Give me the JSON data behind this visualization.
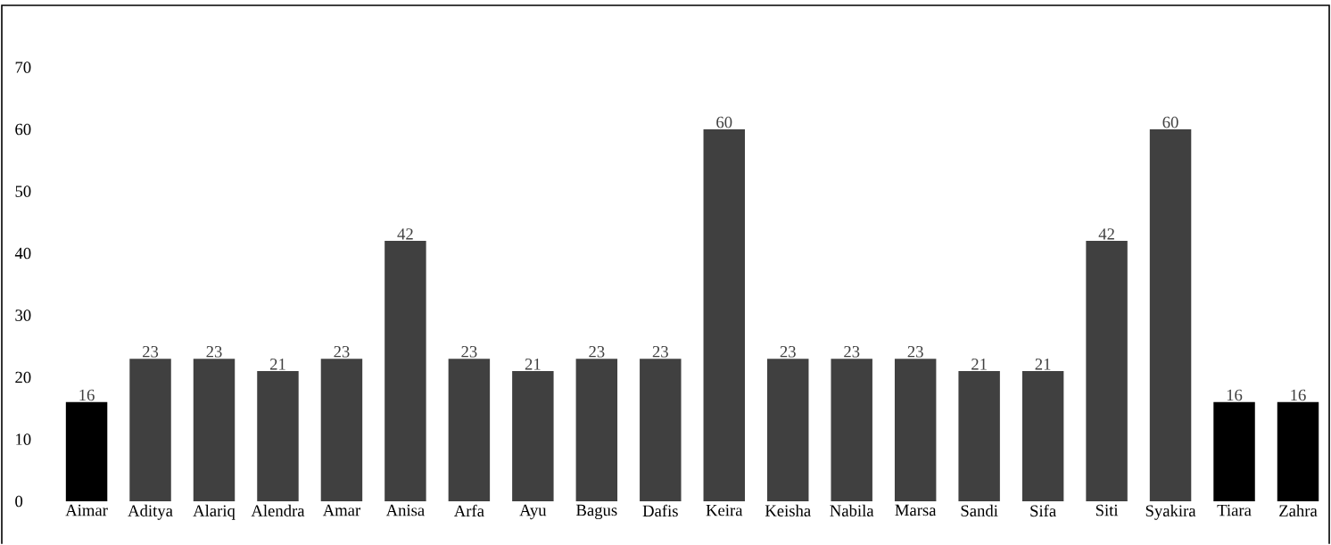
{
  "chart_data": {
    "type": "bar",
    "categories": [
      "Aimar",
      "Aditya",
      "Alariq",
      "Alendra",
      "Amar",
      "Anisa",
      "Arfa",
      "Ayu",
      "Bagus",
      "Dafis",
      "Keira",
      "Keisha",
      "Nabila",
      "Marsa",
      "Sandi",
      "Sifa",
      "Siti",
      "Syakira",
      "Tiara",
      "Zahra"
    ],
    "values": [
      16,
      23,
      23,
      21,
      23,
      42,
      23,
      21,
      23,
      23,
      60,
      23,
      23,
      23,
      21,
      21,
      42,
      60,
      16,
      16
    ],
    "colors": [
      "#000000",
      "#404040",
      "#404040",
      "#404040",
      "#404040",
      "#404040",
      "#404040",
      "#404040",
      "#404040",
      "#404040",
      "#404040",
      "#404040",
      "#404040",
      "#404040",
      "#404040",
      "#404040",
      "#404040",
      "#404040",
      "#000000",
      "#000000"
    ],
    "ylim": [
      0,
      80
    ],
    "yticks": [
      0,
      10,
      20,
      30,
      40,
      50,
      60,
      70
    ],
    "data_labels": true,
    "grid": false
  }
}
